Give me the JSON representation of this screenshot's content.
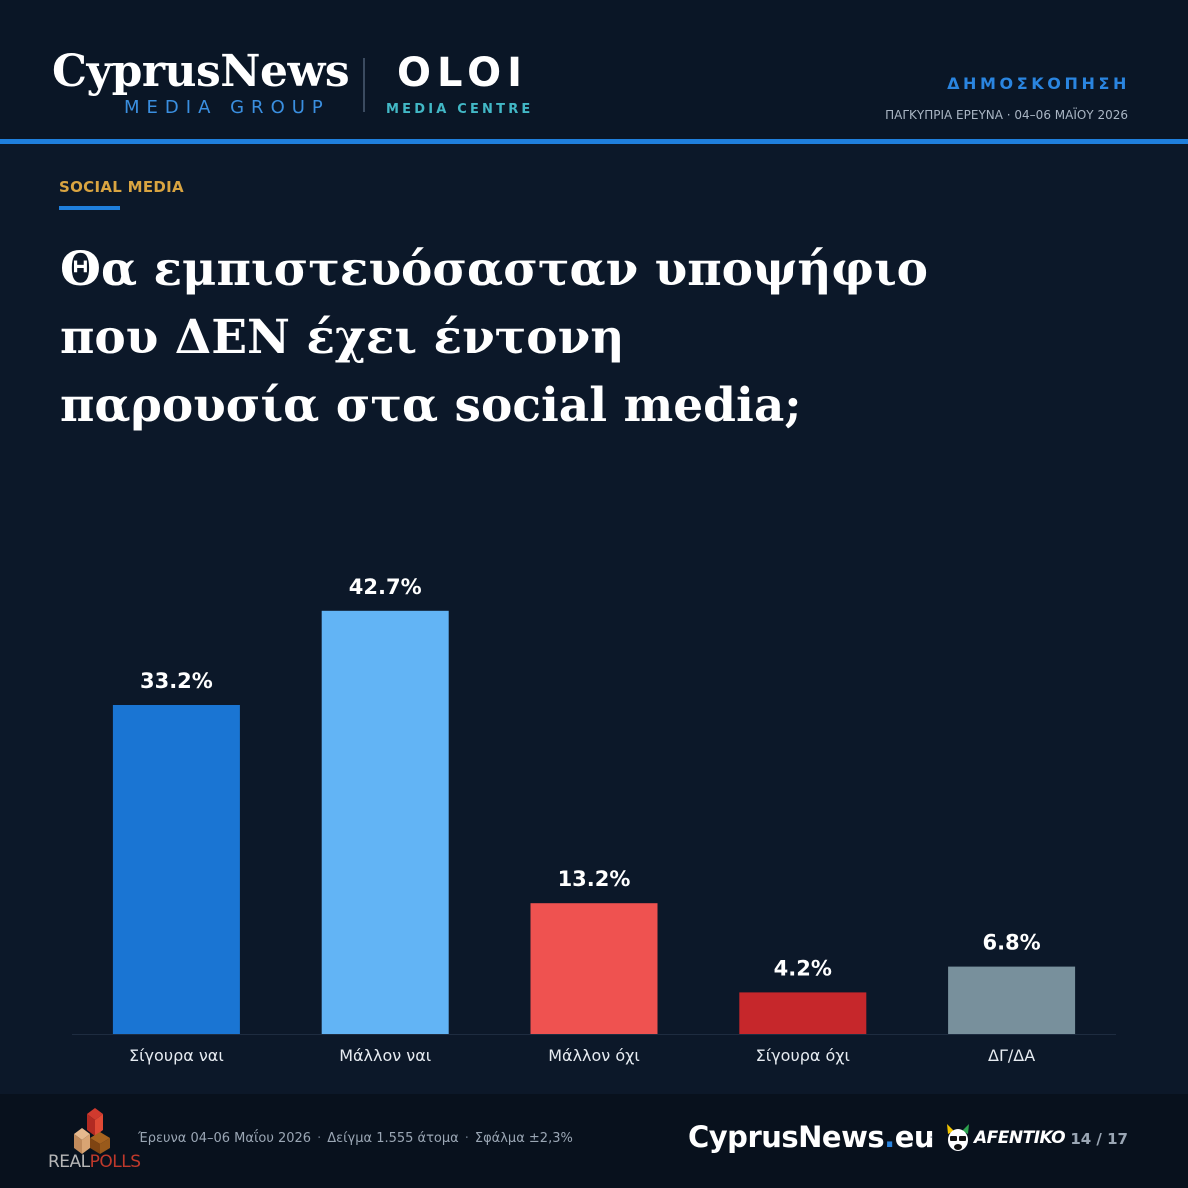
{
  "header": {
    "brand_main": "CyprusNews",
    "brand_sub": "MEDIA GROUP",
    "brand2_main": "OLOI",
    "brand2_sub": "MEDIA CENTRE",
    "section_label": "ΔΗΜΟΣΚΟΠΗΣΗ",
    "survey_line": "ΠΑΓΚΥΠΡΙΑ ΕΡΕΥΝΑ · 04–06 ΜΑΪΟΥ 2026"
  },
  "topic": "SOCIAL MEDIA",
  "question_lines": [
    "Θα εμπιστευόσασταν υποψήφιο",
    "που ΔΕΝ έχει έντονη",
    "παρουσία στα social media;"
  ],
  "chart_data": {
    "type": "bar",
    "categories": [
      "Σίγουρα ναι",
      "Μάλλον ναι",
      "Μάλλον όχι",
      "Σίγουρα όχι",
      "ΔΓ/ΔΑ"
    ],
    "values": [
      33.2,
      42.7,
      13.2,
      4.2,
      6.8
    ],
    "value_labels": [
      "33.2%",
      "42.7%",
      "13.2%",
      "4.2%",
      "6.8%"
    ],
    "colors": [
      "#1a75d3",
      "#62b4f5",
      "#ef5250",
      "#c6272b",
      "#78909c"
    ],
    "unit": "%",
    "title": "",
    "xlabel": "",
    "ylabel": "",
    "ylim": [
      0,
      45
    ],
    "grid": false
  },
  "footer": {
    "pollster": {
      "prefix": "REAL",
      "suffix": "POLLS"
    },
    "survey_dates": "Έρευνα 04–06 Μαΐου 2026",
    "sample": "Δείγμα 1.555 άτομα",
    "error": "Σφάλμα ±2,3%",
    "site_name": "CyprusNews",
    "site_dot": ".",
    "site_tld": "eu",
    "separator": "·",
    "partner": "AFENTIKO",
    "page": "14 / 17"
  },
  "colors": {
    "background": "#0c1829",
    "accent": "#1f7fdc",
    "topic": "#d9a441",
    "teal": "#42b8c6"
  }
}
